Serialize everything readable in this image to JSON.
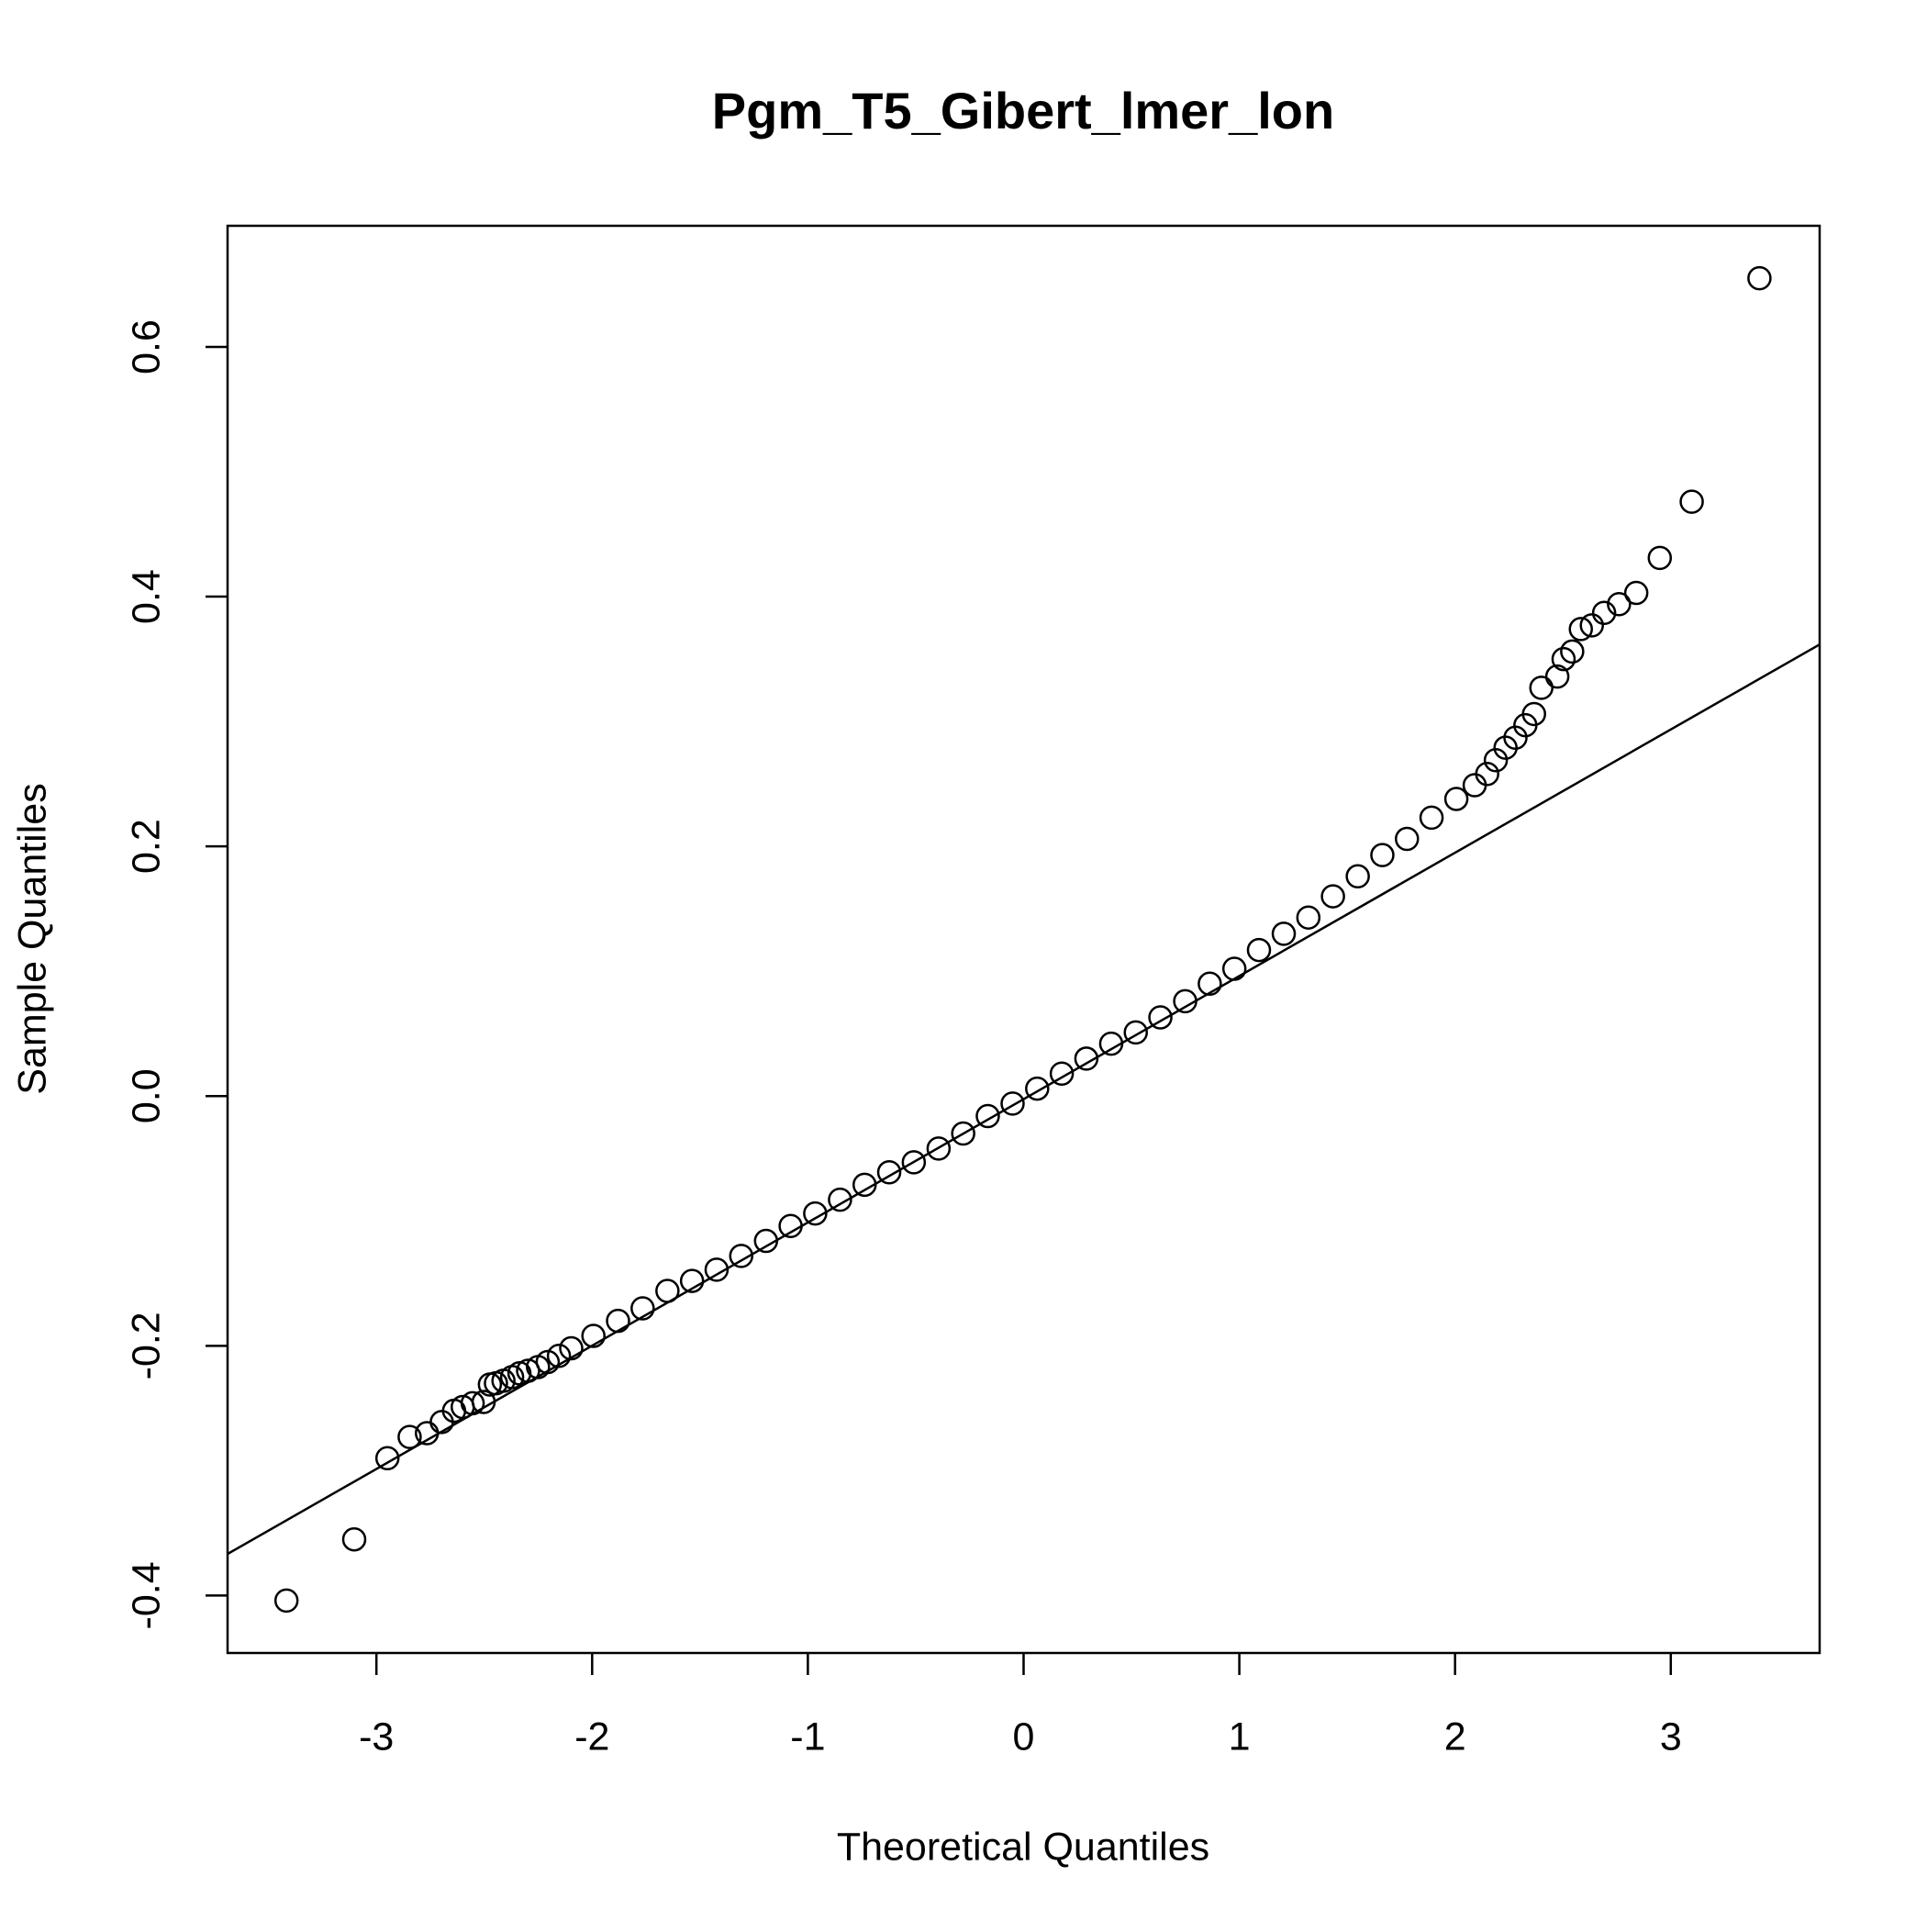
{
  "chart_data": {
    "type": "scatter",
    "title": "Pgm_T5_Gibert_lmer_lon",
    "x_label": "Theoretical Quantiles",
    "y_label": "Sample Quantiles",
    "x": [
      -3.417,
      -3.103,
      -2.949,
      -2.846,
      -2.766,
      -2.697,
      -2.64,
      -2.6,
      -2.554,
      -2.503,
      -2.474,
      -2.446,
      -2.411,
      -2.371,
      -2.337,
      -2.297,
      -2.251,
      -2.206,
      -2.154,
      -2.097,
      -1.994,
      -1.88,
      -1.766,
      -1.651,
      -1.537,
      -1.423,
      -1.309,
      -1.194,
      -1.08,
      -0.966,
      -0.851,
      -0.737,
      -0.623,
      -0.509,
      -0.394,
      -0.28,
      -0.166,
      -0.051,
      0.063,
      0.177,
      0.291,
      0.406,
      0.52,
      0.634,
      0.749,
      0.863,
      0.977,
      1.091,
      1.206,
      1.32,
      1.434,
      1.549,
      1.663,
      1.777,
      1.891,
      2.006,
      2.091,
      2.149,
      2.189,
      2.234,
      2.28,
      2.326,
      2.366,
      2.4,
      2.474,
      2.503,
      2.543,
      2.583,
      2.634,
      2.691,
      2.76,
      2.84,
      2.949,
      3.097,
      3.411
    ],
    "y": [
      -0.404,
      -0.355,
      -0.29,
      -0.273,
      -0.27,
      -0.261,
      -0.252,
      -0.249,
      -0.246,
      -0.245,
      -0.231,
      -0.23,
      -0.228,
      -0.225,
      -0.222,
      -0.22,
      -0.217,
      -0.213,
      -0.208,
      -0.202,
      -0.192,
      -0.18,
      -0.17,
      -0.156,
      -0.148,
      -0.139,
      -0.128,
      -0.116,
      -0.104,
      -0.094,
      -0.083,
      -0.071,
      -0.061,
      -0.053,
      -0.042,
      -0.03,
      -0.016,
      -0.006,
      0.006,
      0.018,
      0.03,
      0.042,
      0.051,
      0.063,
      0.076,
      0.09,
      0.102,
      0.117,
      0.13,
      0.143,
      0.16,
      0.176,
      0.193,
      0.206,
      0.223,
      0.238,
      0.249,
      0.258,
      0.269,
      0.279,
      0.287,
      0.297,
      0.306,
      0.327,
      0.336,
      0.35,
      0.356,
      0.374,
      0.377,
      0.387,
      0.394,
      0.403,
      0.431,
      0.476,
      0.655
    ],
    "color": "#000000",
    "reference_line": {
      "intercept": -0.0025,
      "slope": 0.0987
    },
    "xlim": [
      -3.69,
      3.69
    ],
    "ylim": [
      -0.446,
      0.697
    ],
    "xticks": [
      -3,
      -2,
      -1,
      0,
      1,
      2,
      3
    ],
    "yticks": [
      -0.4,
      -0.2,
      {
        "value": 0,
        "label": "0.0"
      },
      0.2,
      0.4,
      0.6
    ]
  }
}
